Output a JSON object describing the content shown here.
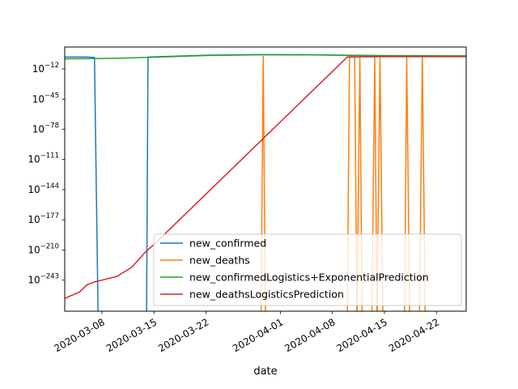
{
  "chart_data": {
    "type": "line",
    "title": "",
    "xlabel": "date",
    "ylabel": "",
    "yscale": "log",
    "xlim": [
      "2020-03-03",
      "2020-04-26"
    ],
    "ylim_log10": [
      -277,
      12
    ],
    "x_ticks": [
      "2020-03-08",
      "2020-03-15",
      "2020-03-22",
      "2020-04-01",
      "2020-04-08",
      "2020-04-15",
      "2020-04-22"
    ],
    "y_ticks": [
      {
        "exp": -12,
        "label": "−12"
      },
      {
        "exp": -45,
        "label": "−45"
      },
      {
        "exp": -78,
        "label": "−78"
      },
      {
        "exp": -111,
        "label": "−111"
      },
      {
        "exp": -144,
        "label": "−144"
      },
      {
        "exp": -177,
        "label": "−177"
      },
      {
        "exp": -210,
        "label": "−210"
      },
      {
        "exp": -243,
        "label": "−243"
      }
    ],
    "legend_position": "lower-right",
    "series": [
      {
        "name": "new_confirmed",
        "color": "#1f77b4",
        "points": [
          [
            "2020-03-03",
            1.0
          ],
          [
            "2020-03-06",
            1.0
          ],
          [
            "2020-03-07",
            0.6
          ],
          [
            "2020-03-07.5",
            -290
          ],
          [
            "2020-03-14",
            -290
          ],
          [
            "2020-03-14.2",
            1.0
          ],
          [
            "2020-03-22",
            3.0
          ],
          [
            "2020-03-29",
            3.7
          ],
          [
            "2020-04-05",
            3.6
          ],
          [
            "2020-04-10",
            2.8
          ],
          [
            "2020-04-16",
            2.4
          ],
          [
            "2020-04-26",
            2.2
          ]
        ]
      },
      {
        "name": "new_deaths",
        "color": "#ff7f0e",
        "points": [
          [
            "2020-03-29.4",
            -290
          ],
          [
            "2020-03-29.7",
            1.8
          ],
          [
            "2020-03-30.0",
            -290
          ],
          [
            "2020-04-10.0",
            -290
          ],
          [
            "2020-04-10.3",
            1.4
          ],
          [
            "2020-04-11.0",
            1.4
          ],
          [
            "2020-04-11.3",
            -290
          ],
          [
            "2020-04-11.7",
            1.0
          ],
          [
            "2020-04-12.0",
            -290
          ],
          [
            "2020-04-13.3",
            -290
          ],
          [
            "2020-04-13.7",
            1.2
          ],
          [
            "2020-04-14.0",
            -290
          ],
          [
            "2020-04-14.4",
            1.2
          ],
          [
            "2020-04-14.8",
            -290
          ],
          [
            "2020-04-17.7",
            -290
          ],
          [
            "2020-04-18.0",
            1.0
          ],
          [
            "2020-04-18.4",
            -290
          ],
          [
            "2020-04-19.7",
            -290
          ],
          [
            "2020-04-20.1",
            1.0
          ],
          [
            "2020-04-20.5",
            -290
          ]
        ]
      },
      {
        "name": "new_confirmedLogistics+ExponentialPrediction",
        "color": "#2ca02c",
        "points": [
          [
            "2020-03-03",
            -1.0
          ],
          [
            "2020-03-10",
            -0.3
          ],
          [
            "2020-03-15",
            0.8
          ],
          [
            "2020-03-22",
            2.7
          ],
          [
            "2020-03-29",
            3.5
          ],
          [
            "2020-04-05",
            3.4
          ],
          [
            "2020-04-10",
            3.0
          ],
          [
            "2020-04-17",
            2.5
          ],
          [
            "2020-04-26",
            2.3
          ]
        ]
      },
      {
        "name": "new_deathsLogisticsPrediction",
        "color": "#d62728",
        "points": [
          [
            "2020-03-03",
            -263
          ],
          [
            "2020-03-05",
            -256
          ],
          [
            "2020-03-06",
            -248
          ],
          [
            "2020-03-07",
            -245
          ],
          [
            "2020-03-10",
            -239
          ],
          [
            "2020-03-12",
            -229
          ],
          [
            "2020-03-14",
            -211
          ],
          [
            "2020-03-15",
            -204
          ],
          [
            "2020-04-10",
            1.0
          ],
          [
            "2020-04-15",
            1.5
          ],
          [
            "2020-04-26",
            1.5
          ]
        ]
      }
    ]
  }
}
